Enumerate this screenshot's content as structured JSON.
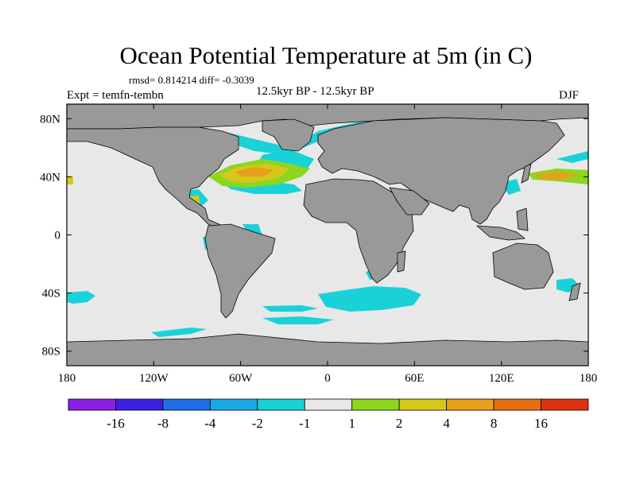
{
  "title": "Ocean Potential Temperature at 5m (in C)",
  "stats": "rmsd= 0.814214 diff= -0.3039",
  "experiment": "Expt = temfn-tembn",
  "period": "12.5kyr BP - 12.5kyr BP",
  "season": "DJF",
  "colors": {
    "land": "#999999",
    "ocean_neutral": "#e8e8e8",
    "frame": "#000000"
  },
  "axes": {
    "lon_ticks": [
      {
        "lon": -180,
        "label": "180"
      },
      {
        "lon": -120,
        "label": "120W"
      },
      {
        "lon": -60,
        "label": "60W"
      },
      {
        "lon": 0,
        "label": "0"
      },
      {
        "lon": 60,
        "label": "60E"
      },
      {
        "lon": 120,
        "label": "120E"
      },
      {
        "lon": 180,
        "label": "180"
      }
    ],
    "lat_ticks": [
      {
        "lat": 80,
        "label": "80N"
      },
      {
        "lat": 40,
        "label": "40N"
      },
      {
        "lat": 0,
        "label": "0"
      },
      {
        "lat": -40,
        "label": "40S"
      },
      {
        "lat": -80,
        "label": "80S"
      }
    ],
    "lon_range": [
      -180,
      180
    ],
    "lat_range": [
      -90,
      90
    ]
  },
  "colorbar": {
    "colors": [
      "#8c1ee6",
      "#3a1fe0",
      "#1f6ee8",
      "#19a8e6",
      "#19d2d8",
      "#e8e8e8",
      "#8cd61e",
      "#d6c81a",
      "#e6a01a",
      "#e66e12",
      "#dc3212"
    ],
    "labels": [
      "-16",
      "-8",
      "-4",
      "-2",
      "-1",
      "1",
      "2",
      "4",
      "8",
      "16"
    ]
  }
}
